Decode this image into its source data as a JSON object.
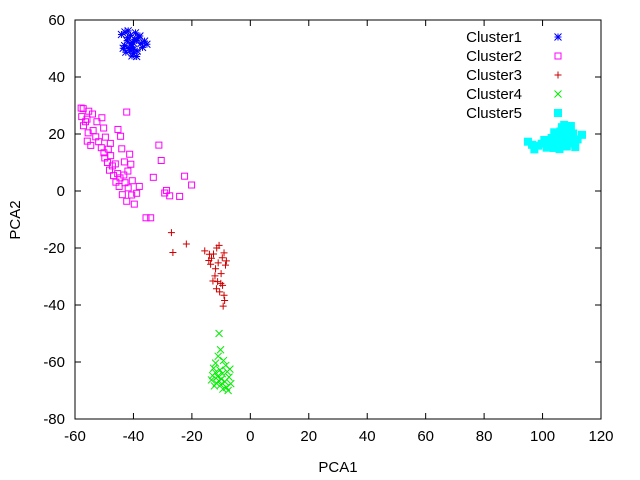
{
  "chart_data": {
    "type": "scatter",
    "xlabel": "PCA1",
    "ylabel": "PCA2",
    "xlim": [
      -60,
      120
    ],
    "ylim": [
      -80,
      60
    ],
    "xticks": [
      -60,
      -40,
      -20,
      0,
      20,
      40,
      60,
      80,
      100,
      120
    ],
    "yticks": [
      -80,
      -60,
      -40,
      -20,
      0,
      20,
      40,
      60
    ],
    "grid": false,
    "legend_position": "top-right",
    "series": [
      {
        "name": "Cluster1",
        "marker": "asterisk",
        "color": "#0000ff",
        "points": [
          [
            -41.5,
            50.0
          ],
          [
            -40.8,
            51.6
          ],
          [
            -39.6,
            53.2
          ],
          [
            -42.2,
            52.7
          ],
          [
            -38.7,
            49.1
          ],
          [
            -40.1,
            48.3
          ],
          [
            -43.0,
            51.0
          ],
          [
            -41.0,
            54.6
          ],
          [
            -39.3,
            55.5
          ],
          [
            -37.4,
            51.8
          ],
          [
            -42.6,
            48.7
          ],
          [
            -40.5,
            47.4
          ],
          [
            -36.9,
            50.4
          ],
          [
            -44.1,
            54.9
          ],
          [
            -41.8,
            56.2
          ],
          [
            -38.2,
            53.9
          ],
          [
            -40.3,
            52.2
          ],
          [
            -39.9,
            49.8
          ],
          [
            -42.9,
            55.8
          ],
          [
            -35.4,
            51.5
          ],
          [
            -38.9,
            47.2
          ],
          [
            -41.2,
            49.4
          ],
          [
            -39.0,
            52.8
          ],
          [
            -42.0,
            53.8
          ],
          [
            -40.6,
            50.6
          ],
          [
            -37.8,
            54.4
          ],
          [
            -43.5,
            50.1
          ],
          [
            -36.2,
            52.6
          ]
        ]
      },
      {
        "name": "Cluster2",
        "marker": "square",
        "color": "#ff00ff",
        "points": [
          [
            -57.9,
            29.1
          ],
          [
            -57.2,
            28.9
          ],
          [
            -57.7,
            26.1
          ],
          [
            -55.9,
            25.2
          ],
          [
            -55.3,
            28.0
          ],
          [
            -54.0,
            27.0
          ],
          [
            -56.4,
            24.3
          ],
          [
            -57.1,
            22.9
          ],
          [
            -55.5,
            20.4
          ],
          [
            -53.8,
            21.2
          ],
          [
            -52.9,
            19.0
          ],
          [
            -55.8,
            17.5
          ],
          [
            -54.6,
            16.0
          ],
          [
            -51.9,
            17.3
          ],
          [
            -50.2,
            22.1
          ],
          [
            -49.6,
            18.9
          ],
          [
            -51.0,
            15.2
          ],
          [
            -50.1,
            13.4
          ],
          [
            -48.6,
            14.7
          ],
          [
            -49.8,
            11.6
          ],
          [
            -47.8,
            12.4
          ],
          [
            -48.9,
            10.0
          ],
          [
            -47.2,
            8.8
          ],
          [
            -48.2,
            7.3
          ],
          [
            -46.2,
            9.5
          ],
          [
            -45.4,
            6.1
          ],
          [
            -46.8,
            5.4
          ],
          [
            -44.6,
            4.6
          ],
          [
            -46.0,
            3.1
          ],
          [
            -43.3,
            5.6
          ],
          [
            -44.9,
            1.6
          ],
          [
            -42.9,
            2.9
          ],
          [
            -43.8,
            -1.3
          ],
          [
            -41.8,
            1.1
          ],
          [
            -40.6,
            -1.4
          ],
          [
            -42.3,
            -3.6
          ],
          [
            -40.4,
            3.6
          ],
          [
            -39.7,
            -4.6
          ],
          [
            -38.9,
            -0.8
          ],
          [
            -35.7,
            -9.4
          ],
          [
            -34.1,
            -9.4
          ],
          [
            -33.2,
            4.8
          ],
          [
            -31.3,
            16.1
          ],
          [
            -30.5,
            10.7
          ],
          [
            -29.3,
            -0.7
          ],
          [
            -28.7,
            0.2
          ],
          [
            -27.6,
            -1.7
          ],
          [
            -24.2,
            -1.9
          ],
          [
            -22.5,
            5.2
          ],
          [
            -20.1,
            2.1
          ],
          [
            -44.0,
            14.8
          ],
          [
            -41.3,
            12.9
          ],
          [
            -43.1,
            10.2
          ],
          [
            -41.9,
            7.0
          ],
          [
            -45.3,
            21.6
          ],
          [
            -44.4,
            19.2
          ],
          [
            -42.3,
            27.7
          ],
          [
            -47.9,
            16.7
          ],
          [
            -50.8,
            25.7
          ],
          [
            -52.5,
            24.3
          ],
          [
            -38.0,
            1.6
          ],
          [
            -40.9,
            9.4
          ]
        ]
      },
      {
        "name": "Cluster3",
        "marker": "plus",
        "color": "#cc0000",
        "points": [
          [
            -27.0,
            -14.6
          ],
          [
            -26.5,
            -21.6
          ],
          [
            -21.9,
            -18.6
          ],
          [
            -15.6,
            -21.0
          ],
          [
            -14.0,
            -22.2
          ],
          [
            -13.3,
            -23.6
          ],
          [
            -14.2,
            -24.4
          ],
          [
            -13.6,
            -25.7
          ],
          [
            -11.5,
            -20.0
          ],
          [
            -10.7,
            -19.1
          ],
          [
            -12.6,
            -22.1
          ],
          [
            -11.9,
            -27.3
          ],
          [
            -11.0,
            -25.2
          ],
          [
            -9.6,
            -23.4
          ],
          [
            -9.0,
            -21.7
          ],
          [
            -8.2,
            -24.5
          ],
          [
            -8.5,
            -26.0
          ],
          [
            -12.1,
            -29.8
          ],
          [
            -12.8,
            -31.6
          ],
          [
            -11.2,
            -31.8
          ],
          [
            -10.1,
            -32.4
          ],
          [
            -11.6,
            -34.3
          ],
          [
            -9.5,
            -33.1
          ],
          [
            -10.5,
            -35.4
          ],
          [
            -9.0,
            -36.6
          ],
          [
            -8.8,
            -38.4
          ],
          [
            -9.3,
            -40.4
          ],
          [
            -10.0,
            -29.0
          ]
        ]
      },
      {
        "name": "Cluster4",
        "marker": "cross",
        "color": "#00ee00",
        "points": [
          [
            -10.7,
            -50.0
          ],
          [
            -10.2,
            -55.7
          ],
          [
            -11.0,
            -58.0
          ],
          [
            -9.2,
            -59.5
          ],
          [
            -11.9,
            -60.4
          ],
          [
            -8.4,
            -61.2
          ],
          [
            -12.6,
            -62.2
          ],
          [
            -10.4,
            -62.8
          ],
          [
            -7.9,
            -63.4
          ],
          [
            -9.6,
            -64.1
          ],
          [
            -12.9,
            -64.8
          ],
          [
            -11.2,
            -65.1
          ],
          [
            -7.3,
            -65.3
          ],
          [
            -9.9,
            -66.0
          ],
          [
            -13.3,
            -66.3
          ],
          [
            -8.7,
            -66.9
          ],
          [
            -11.6,
            -67.4
          ],
          [
            -6.7,
            -67.6
          ],
          [
            -10.1,
            -68.0
          ],
          [
            -12.3,
            -68.4
          ],
          [
            -8.2,
            -68.9
          ],
          [
            -9.4,
            -69.5
          ],
          [
            -7.6,
            -70.0
          ],
          [
            -10.8,
            -66.6
          ],
          [
            -12.0,
            -63.7
          ],
          [
            -7.0,
            -62.5
          ]
        ]
      },
      {
        "name": "Cluster5",
        "marker": "filled-square",
        "color": "#00ffff",
        "points": [
          [
            95.0,
            17.3
          ],
          [
            96.4,
            16.2
          ],
          [
            97.2,
            14.6
          ],
          [
            98.5,
            15.9
          ],
          [
            99.7,
            16.6
          ],
          [
            100.6,
            17.9
          ],
          [
            102.3,
            16.3
          ],
          [
            103.8,
            15.1
          ],
          [
            104.6,
            17.5
          ],
          [
            105.4,
            18.8
          ],
          [
            106.1,
            20.9
          ],
          [
            106.6,
            22.4
          ],
          [
            107.2,
            19.6
          ],
          [
            107.9,
            17.8
          ],
          [
            108.3,
            15.6
          ],
          [
            108.8,
            21.4
          ],
          [
            109.4,
            18.4
          ],
          [
            110.1,
            16.7
          ],
          [
            110.5,
            20.2
          ],
          [
            111.2,
            15.4
          ],
          [
            112.0,
            18.1
          ],
          [
            113.5,
            19.7
          ],
          [
            105.8,
            14.7
          ],
          [
            107.4,
            23.2
          ],
          [
            109.7,
            22.8
          ],
          [
            101.4,
            15.2
          ],
          [
            103.1,
            18.6
          ],
          [
            106.8,
            16.4
          ],
          [
            108.9,
            19.9
          ],
          [
            104.0,
            20.6
          ]
        ]
      }
    ]
  }
}
